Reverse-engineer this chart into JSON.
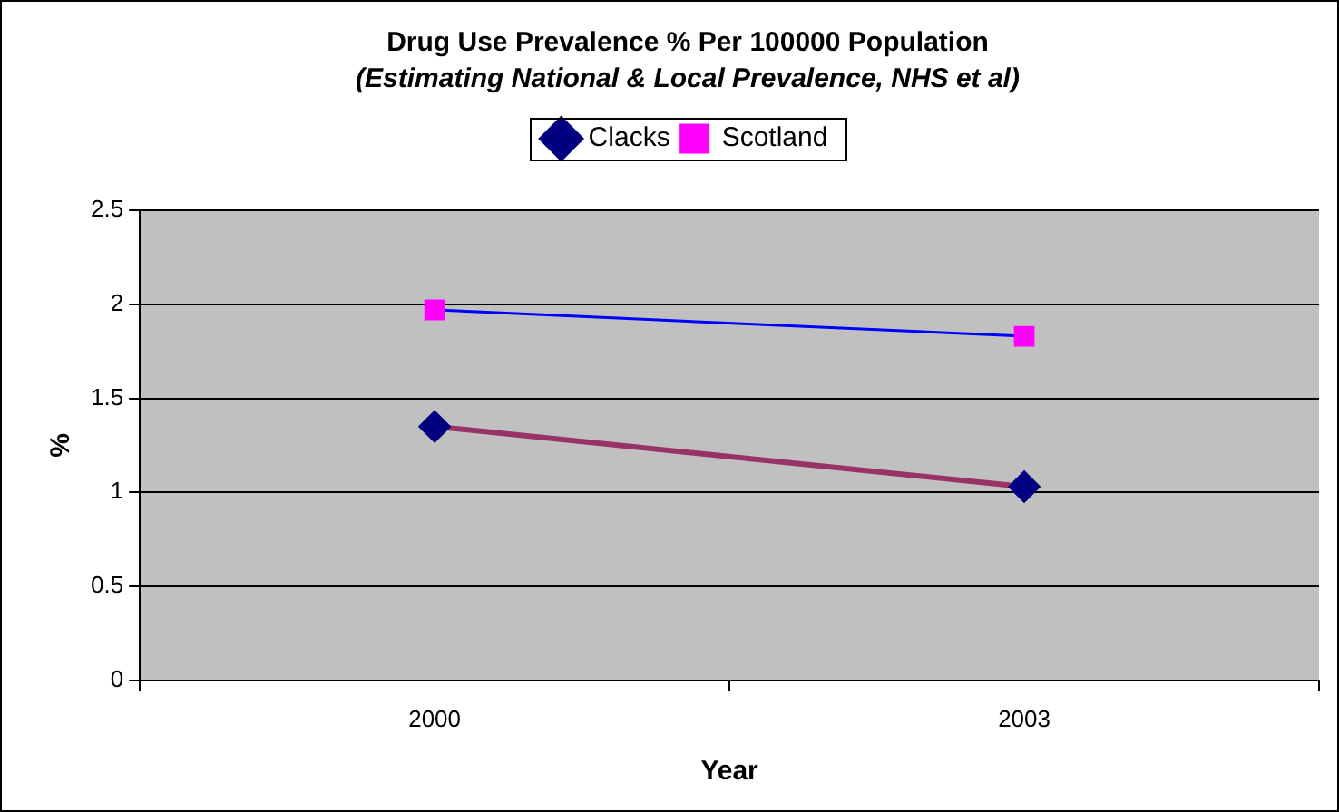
{
  "chart_data": {
    "type": "line",
    "title": "Drug Use Prevalence % Per 100000 Population",
    "subtitle": "(Estimating National & Local Prevalence, NHS et al)",
    "xlabel": "Year",
    "ylabel": "%",
    "categories": [
      "2000",
      "2003"
    ],
    "series": [
      {
        "name": "Clacks",
        "color": "#993366",
        "marker": "diamond",
        "values": [
          1.35,
          1.03
        ]
      },
      {
        "name": "Scotland",
        "color": "#0000ff",
        "marker": "square",
        "values": [
          1.97,
          1.83
        ]
      }
    ],
    "ylim": [
      0,
      2.5
    ],
    "yticks": [
      0,
      0.5,
      1,
      1.5,
      2,
      2.5
    ],
    "grid": "y",
    "legend": "top",
    "line_style": "solid"
  }
}
